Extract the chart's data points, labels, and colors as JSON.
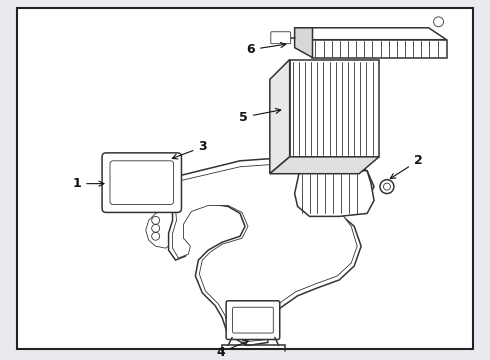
{
  "background_color": "#e8eaf0",
  "border_color": "#222222",
  "line_color": "#333333",
  "label_color": "#111111",
  "fig_width": 4.9,
  "fig_height": 3.6,
  "dpi": 100
}
